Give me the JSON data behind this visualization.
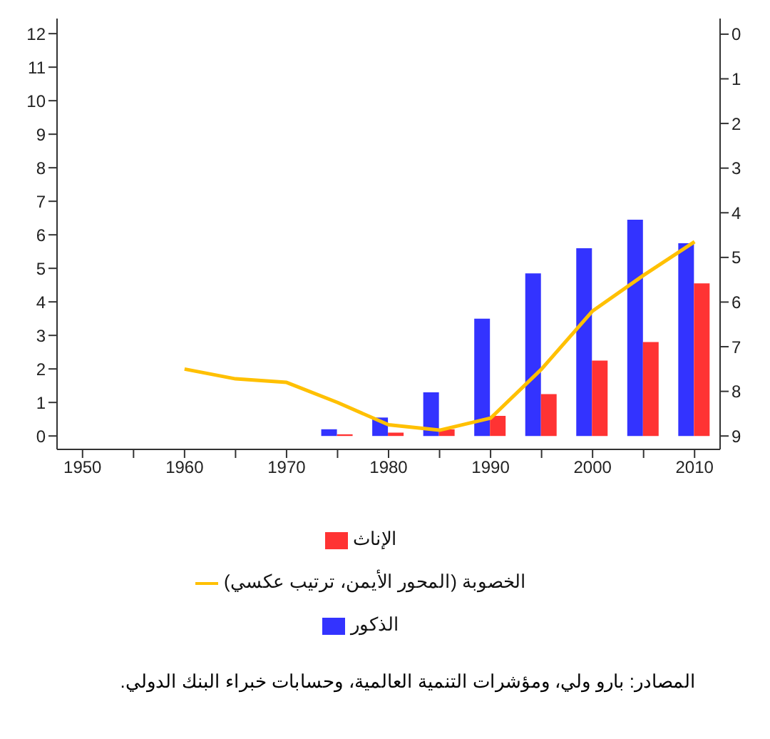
{
  "chart_data": {
    "type": "bar",
    "categories": [
      "1950",
      null,
      "1960",
      null,
      "1970",
      null,
      "1980",
      null,
      "1990",
      null,
      "2000",
      null,
      "2010"
    ],
    "series": [
      {
        "name": "الذكور",
        "color": "#3333ff",
        "values": [
          0,
          0,
          0,
          0,
          0,
          0.2,
          0.55,
          1.3,
          3.5,
          4.85,
          5.6,
          6.45,
          5.75
        ]
      },
      {
        "name": "الإناث",
        "color": "#ff3333",
        "values": [
          0,
          0,
          0,
          0,
          0,
          0.05,
          0.1,
          0.2,
          0.6,
          1.25,
          2.25,
          2.8,
          4.55
        ]
      },
      {
        "name": "الخصوبة (المحور الأيمن، ترتيب عكسي)",
        "type": "line",
        "axis": "y2",
        "color": "#ffc000",
        "values": [
          null,
          null,
          7.5,
          7.72,
          7.8,
          8.25,
          8.75,
          8.87,
          8.6,
          7.5,
          6.2,
          5.4,
          4.65
        ]
      }
    ],
    "ylim": [
      -0.4,
      12.45
    ],
    "yticks": [
      0,
      1,
      2,
      3,
      4,
      5,
      6,
      7,
      8,
      9,
      10,
      11,
      12
    ],
    "y2lim": [
      9.3,
      -0.35
    ],
    "y2ticks": [
      0,
      1,
      2,
      3,
      4,
      5,
      6,
      7,
      8,
      9
    ],
    "grid": false,
    "legend": "bottom",
    "marker": "none",
    "line_style": "solid",
    "annotations": [
      "المصادر: بارو ولي، ومؤشرات التنمية العالمية، وحسابات خبراء البنك الدولي."
    ]
  }
}
